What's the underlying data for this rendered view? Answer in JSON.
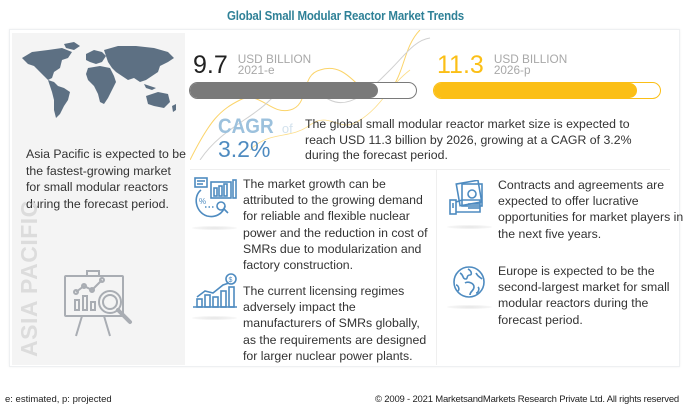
{
  "title": "Global Small Modular Reactor Market Trends",
  "metrics": [
    {
      "value": "9.7",
      "unit": "USD BILLION",
      "year": "2021-e",
      "progress_percent": 83,
      "color": "#7a7a7a"
    },
    {
      "value": "11.3",
      "unit": "USD BILLION",
      "year": "2026-p",
      "progress_percent": 90,
      "color": "#fbbf16"
    }
  ],
  "cagr": {
    "label": "CAGR",
    "of": "of",
    "value": "3.2%",
    "description": "The global small modular reactor market size is expected to reach USD 11.3 billion by 2026, growing at a CAGR of 3.2% during the forecast period."
  },
  "region": {
    "label": "ASIA PACIFIC",
    "text": "Asia Pacific is expected to be the fastest-growing market for small modular reactors during the forecast period."
  },
  "insights": [
    {
      "icon": "growth-analysis-icon",
      "text": "The market growth can be attributed to the growing demand for reliable and flexible nuclear power and the reduction in cost of SMRs due to modularization and factory construction."
    },
    {
      "icon": "revenue-chart-icon",
      "text": "The current licensing regimes adversely impact the manufacturers of SMRs globally, as the requirements are designed for larger nuclear power plants."
    },
    {
      "icon": "money-hand-icon",
      "text": "Contracts and agreements are expected to offer lucrative opportunities for market players in the next five years."
    },
    {
      "icon": "globe-icon",
      "text": "Europe is expected to be the second-largest market for small modular reactors during the forecast period."
    }
  ],
  "footer": {
    "note": "e: estimated, p: projected",
    "copyright": "© 2009 - 2021  MarketsandMarkets Research Private Ltd. All rights reserved"
  },
  "colors": {
    "title": "#2f8197",
    "accent_yellow": "#fbbf16",
    "accent_gray": "#7a7a7a",
    "icon_blue": "#4e8bc0",
    "map": "#5d7083"
  }
}
